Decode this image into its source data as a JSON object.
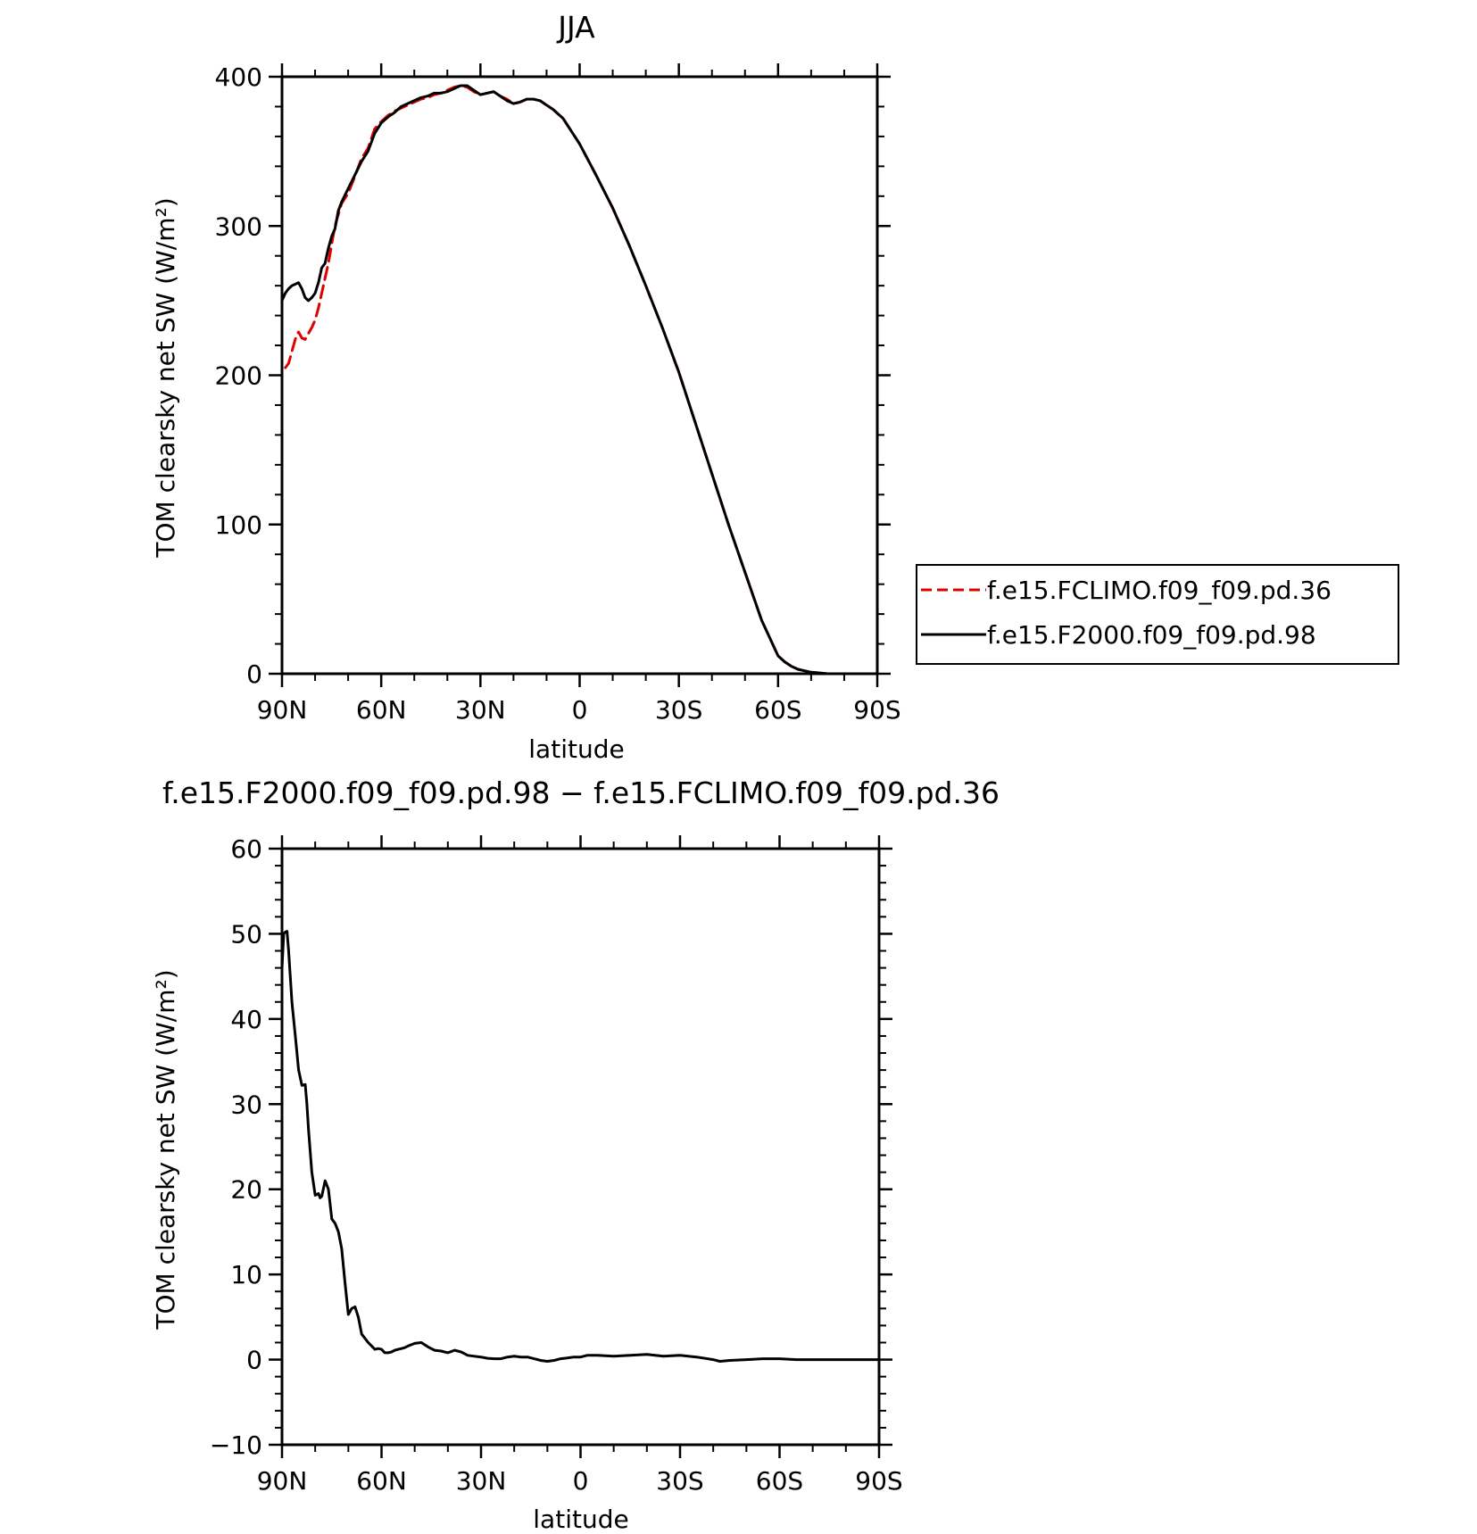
{
  "chart_data": [
    {
      "type": "line",
      "title": "JJA",
      "xlabel": "latitude",
      "ylabel": "TOM clearsky net SW (W/m²)",
      "xlim": [
        90,
        -90
      ],
      "ylim": [
        0,
        400
      ],
      "x_ticks": [
        90,
        60,
        30,
        0,
        -30,
        -60,
        -90
      ],
      "x_tick_labels": [
        "90N",
        "60N",
        "30N",
        "0",
        "30S",
        "60S",
        "90S"
      ],
      "y_ticks": [
        0,
        100,
        200,
        300,
        400
      ],
      "y_tick_labels": [
        "0",
        "100",
        "200",
        "300",
        "400"
      ],
      "legend_position": "right",
      "series": [
        {
          "name": "f.e15.FCLIMO.f09_f09.pd.36",
          "color": "#e00000",
          "dash": "dashed",
          "x": [
            89,
            88,
            87,
            86,
            85,
            84,
            83,
            82,
            81,
            80,
            79,
            78,
            76,
            74,
            72,
            70,
            68,
            66,
            64,
            62,
            60,
            58,
            56,
            54,
            52,
            50,
            48,
            46,
            44,
            42,
            40,
            38,
            36,
            34,
            32,
            30,
            28,
            26,
            24,
            22,
            20,
            18,
            16,
            14,
            12,
            10,
            8,
            5,
            0,
            -5,
            -10,
            -15,
            -20,
            -25,
            -30,
            -35,
            -40,
            -45,
            -50,
            -55,
            -60,
            -62,
            -64,
            -66,
            -68,
            -70,
            -75,
            -80,
            -85,
            -90
          ],
          "y": [
            205,
            208,
            216,
            224,
            229,
            225,
            224,
            228,
            232,
            237,
            245,
            255,
            275,
            300,
            315,
            322,
            333,
            345,
            352,
            365,
            370,
            374,
            377,
            379,
            381,
            383,
            385,
            386,
            388,
            389,
            391,
            393,
            394,
            393,
            390,
            388,
            389,
            390,
            387,
            385,
            382,
            383,
            385,
            385,
            384,
            381,
            378,
            372,
            355,
            334,
            312,
            287,
            260,
            232,
            202,
            168,
            134,
            100,
            68,
            36,
            12,
            8,
            5,
            3,
            2,
            1,
            0,
            0,
            0,
            0
          ]
        },
        {
          "name": "f.e15.F2000.f09_f09.pd.98",
          "color": "#000000",
          "dash": "solid",
          "x": [
            90,
            89,
            88,
            87,
            86,
            85,
            84,
            83,
            82,
            81,
            80,
            79,
            78,
            77,
            76,
            75,
            74,
            73,
            72,
            70,
            68,
            66,
            64,
            62,
            60,
            58,
            56,
            54,
            52,
            50,
            48,
            46,
            44,
            42,
            40,
            38,
            36,
            34,
            32,
            30,
            28,
            26,
            24,
            22,
            20,
            18,
            16,
            14,
            12,
            10,
            8,
            5,
            0,
            -5,
            -10,
            -15,
            -20,
            -25,
            -30,
            -35,
            -40,
            -45,
            -50,
            -55,
            -60,
            -62,
            -64,
            -66,
            -68,
            -70,
            -75,
            -80,
            -85,
            -90
          ],
          "y": [
            250,
            255,
            258,
            260,
            261,
            262,
            258,
            252,
            250,
            252,
            255,
            262,
            272,
            275,
            285,
            293,
            298,
            310,
            316,
            325,
            334,
            343,
            350,
            362,
            369,
            373,
            376,
            380,
            382,
            384,
            386,
            387,
            389,
            389,
            390,
            392,
            394,
            394,
            391,
            388,
            389,
            390,
            387,
            384,
            382,
            383,
            385,
            385,
            384,
            381,
            378,
            372,
            355,
            334,
            312,
            287,
            260,
            232,
            202,
            168,
            134,
            100,
            68,
            36,
            12,
            8,
            5,
            3,
            2,
            1,
            0,
            0,
            0,
            0
          ]
        }
      ]
    },
    {
      "type": "line",
      "title": "f.e15.F2000.f09_f09.pd.98 − f.e15.FCLIMO.f09_f09.pd.36",
      "xlabel": "latitude",
      "ylabel": "TOM clearsky net SW (W/m²)",
      "xlim": [
        90,
        -90
      ],
      "ylim": [
        -10,
        60
      ],
      "x_ticks": [
        90,
        60,
        30,
        0,
        -30,
        -60,
        -90
      ],
      "x_tick_labels": [
        "90N",
        "60N",
        "30N",
        "0",
        "30S",
        "60S",
        "90S"
      ],
      "y_ticks": [
        -10,
        0,
        10,
        20,
        30,
        40,
        50,
        60
      ],
      "y_tick_labels": [
        "−10",
        "0",
        "10",
        "20",
        "30",
        "40",
        "50",
        "60"
      ],
      "series": [
        {
          "color": "#000000",
          "dash": "solid",
          "x": [
            90,
            89.5,
            89,
            88.5,
            88,
            87,
            86,
            85,
            84,
            83,
            82.5,
            82,
            81,
            80,
            79,
            78.5,
            78,
            77,
            76,
            75,
            74,
            73,
            72,
            71,
            70,
            69,
            68,
            67,
            66,
            65,
            64,
            63,
            62,
            61,
            60,
            59,
            58,
            57,
            56,
            55,
            54,
            53,
            52,
            50,
            48,
            46,
            44,
            42,
            40,
            38,
            36,
            34,
            32,
            30,
            28,
            26,
            24,
            22,
            20,
            18,
            16,
            14,
            12,
            10,
            8,
            6,
            4,
            2,
            0,
            -2,
            -5,
            -10,
            -15,
            -20,
            -25,
            -30,
            -35,
            -40,
            -42,
            -45,
            -50,
            -55,
            -60,
            -65,
            -70,
            -75,
            -80,
            -85,
            -90
          ],
          "y": [
            46,
            50,
            50.2,
            50.3,
            48,
            42,
            38,
            34,
            32.2,
            32.3,
            30,
            27,
            22,
            19.3,
            19.5,
            19,
            19.2,
            21,
            20,
            16.5,
            16,
            15,
            13,
            9,
            5.3,
            6,
            6.2,
            5,
            3,
            2.5,
            2,
            1.6,
            1.2,
            1.3,
            1.2,
            0.8,
            0.8,
            0.9,
            1.1,
            1.2,
            1.3,
            1.4,
            1.6,
            1.9,
            2,
            1.5,
            1.1,
            1.0,
            0.8,
            1.1,
            0.9,
            0.5,
            0.4,
            0.3,
            0.15,
            0.1,
            0.1,
            0.3,
            0.4,
            0.3,
            0.3,
            0.1,
            -0.1,
            -0.2,
            -0.1,
            0.1,
            0.2,
            0.3,
            0.3,
            0.5,
            0.5,
            0.4,
            0.5,
            0.6,
            0.4,
            0.5,
            0.3,
            0.0,
            -0.2,
            -0.1,
            0.0,
            0.1,
            0.1,
            0.0,
            0.0,
            0.0,
            0.0,
            0.0,
            0.0
          ]
        }
      ]
    }
  ]
}
